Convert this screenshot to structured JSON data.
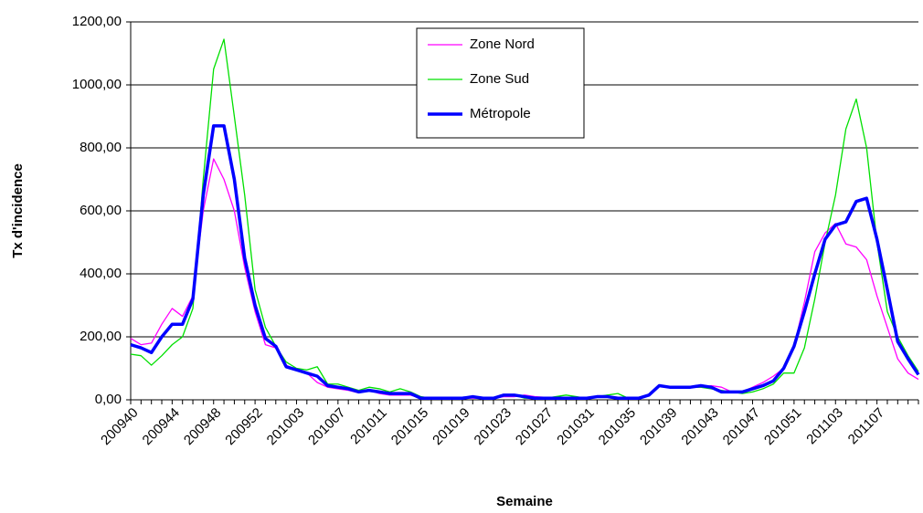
{
  "chart_data": {
    "type": "line",
    "y_label": "Tx d'incidence",
    "x_label": "Semaine",
    "categories": [
      "200940",
      null,
      null,
      null,
      "200944",
      null,
      null,
      null,
      "200948",
      null,
      null,
      null,
      "200952",
      null,
      null,
      null,
      "201003",
      null,
      null,
      null,
      "201007",
      null,
      null,
      null,
      "201011",
      null,
      null,
      null,
      "201015",
      null,
      null,
      null,
      "201019",
      null,
      null,
      null,
      "201023",
      null,
      null,
      null,
      "201027",
      null,
      null,
      null,
      "201031",
      null,
      null,
      null,
      "201035",
      null,
      null,
      null,
      "201039",
      null,
      null,
      null,
      "201043",
      null,
      null,
      null,
      "201047",
      null,
      null,
      null,
      "201051",
      null,
      null,
      null,
      "201103",
      null,
      null,
      null,
      "201107",
      null,
      null,
      null,
      null
    ],
    "series": [
      {
        "name": "Zone Nord",
        "color": "#ff00ff",
        "width": 1.3,
        "values": [
          195,
          175,
          180,
          240,
          290,
          265,
          330,
          600,
          765,
          700,
          600,
          420,
          280,
          175,
          165,
          110,
          95,
          85,
          55,
          40,
          35,
          30,
          22,
          30,
          20,
          15,
          15,
          15,
          5,
          5,
          5,
          5,
          5,
          5,
          5,
          5,
          10,
          10,
          15,
          10,
          8,
          5,
          5,
          5,
          5,
          10,
          10,
          8,
          5,
          5,
          15,
          45,
          40,
          40,
          40,
          40,
          45,
          40,
          25,
          25,
          40,
          55,
          75,
          100,
          170,
          310,
          470,
          530,
          560,
          495,
          485,
          445,
          330,
          230,
          130,
          85,
          65
        ]
      },
      {
        "name": "Zone Sud",
        "color": "#00e000",
        "width": 1.3,
        "values": [
          145,
          140,
          110,
          140,
          175,
          200,
          290,
          700,
          1050,
          1145,
          900,
          650,
          350,
          230,
          170,
          120,
          100,
          95,
          105,
          50,
          50,
          40,
          30,
          40,
          35,
          25,
          35,
          25,
          10,
          5,
          5,
          5,
          5,
          10,
          5,
          5,
          15,
          15,
          5,
          5,
          5,
          10,
          15,
          10,
          5,
          10,
          15,
          20,
          5,
          5,
          15,
          45,
          40,
          40,
          40,
          40,
          35,
          30,
          25,
          20,
          25,
          35,
          50,
          85,
          85,
          165,
          320,
          500,
          650,
          860,
          955,
          800,
          500,
          280,
          200,
          140,
          90
        ]
      },
      {
        "name": "Métropole",
        "color": "#0000ff",
        "width": 3.5,
        "values": [
          175,
          165,
          150,
          200,
          240,
          240,
          320,
          650,
          870,
          870,
          700,
          450,
          300,
          195,
          170,
          105,
          95,
          85,
          75,
          45,
          40,
          35,
          25,
          30,
          25,
          20,
          20,
          20,
          5,
          5,
          5,
          5,
          5,
          10,
          5,
          5,
          15,
          15,
          10,
          5,
          5,
          5,
          5,
          5,
          5,
          10,
          10,
          5,
          5,
          5,
          15,
          45,
          40,
          40,
          40,
          45,
          40,
          25,
          25,
          25,
          35,
          45,
          60,
          100,
          170,
          280,
          400,
          510,
          555,
          565,
          630,
          640,
          510,
          350,
          185,
          130,
          80
        ]
      }
    ],
    "ylim": [
      0,
      1200
    ],
    "yticks": [
      {
        "value": 0,
        "label": "0,00"
      },
      {
        "value": 200,
        "label": "200,00"
      },
      {
        "value": 400,
        "label": "400,00"
      },
      {
        "value": 600,
        "label": "600,00"
      },
      {
        "value": 800,
        "label": "800,00"
      },
      {
        "value": 1000,
        "label": "1000,00"
      },
      {
        "value": 1200,
        "label": "1200,00"
      }
    ],
    "grid": true
  }
}
